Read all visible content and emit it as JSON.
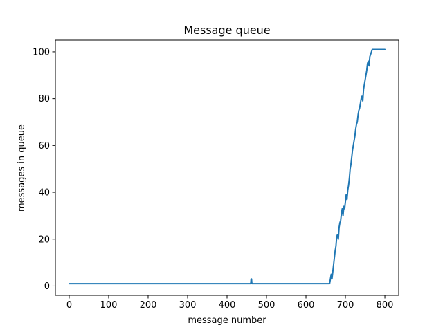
{
  "chart_data": {
    "type": "line",
    "title": "Message queue",
    "xlabel": "message number",
    "ylabel": "messages in queue",
    "xlim": [
      -35,
      835
    ],
    "ylim": [
      -4,
      105
    ],
    "xticks": [
      0,
      100,
      200,
      300,
      400,
      500,
      600,
      700,
      800
    ],
    "yticks": [
      0,
      20,
      40,
      60,
      80,
      100
    ],
    "grid": false,
    "legend": "none",
    "series": [
      {
        "color": "#1f77b4",
        "x": [
          0,
          460,
          461,
          462,
          463,
          464,
          660,
          662,
          664,
          666,
          668,
          670,
          672,
          674,
          676,
          678,
          680,
          682,
          684,
          686,
          688,
          690,
          692,
          694,
          696,
          698,
          700,
          702,
          704,
          706,
          708,
          710,
          712,
          714,
          716,
          718,
          720,
          722,
          724,
          726,
          728,
          730,
          732,
          734,
          736,
          738,
          740,
          742,
          744,
          746,
          748,
          750,
          752,
          754,
          756,
          758,
          760,
          762,
          764,
          766,
          768,
          770,
          772,
          774,
          776,
          778,
          780,
          782,
          784,
          786,
          788,
          790,
          792,
          794,
          796,
          798,
          800
        ],
        "y": [
          1,
          1,
          3,
          3,
          1,
          1,
          1,
          3,
          5,
          3,
          6,
          9,
          12,
          15,
          17,
          21,
          22,
          20,
          25,
          27,
          28,
          31,
          33,
          30,
          34,
          33,
          36,
          39,
          37,
          41,
          43,
          46,
          50,
          52,
          55,
          58,
          60,
          62,
          64,
          67,
          69,
          70,
          73,
          75,
          76,
          78,
          80,
          81,
          79,
          84,
          86,
          88,
          90,
          92,
          95,
          96,
          94,
          98,
          99,
          100,
          101,
          101,
          101,
          101,
          101,
          101,
          101,
          101,
          101,
          101,
          101,
          101,
          101,
          101,
          101,
          101,
          101
        ]
      }
    ]
  }
}
